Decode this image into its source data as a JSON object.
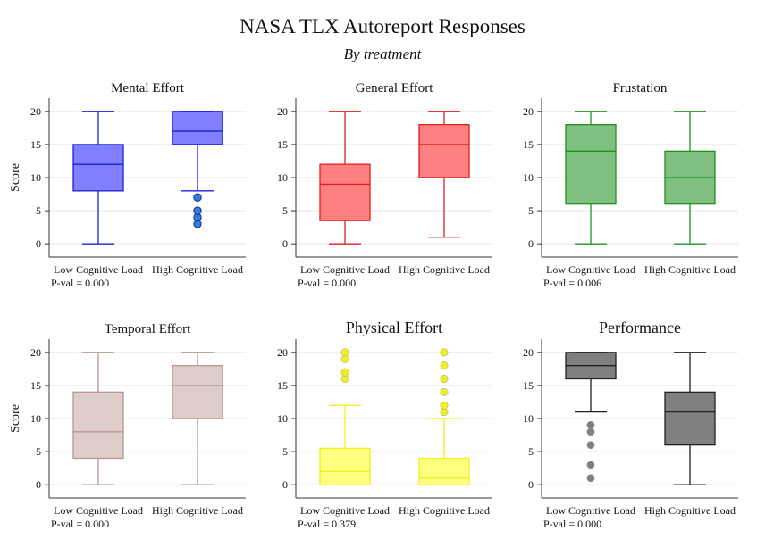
{
  "figure": {
    "title": "NASA TLX Autoreport Responses",
    "subtitle": "By treatment"
  },
  "chart_data": [
    {
      "type": "box",
      "title": "Mental Effort",
      "ylabel": "Score",
      "ylim": [
        -2,
        22
      ],
      "yticks": [
        0,
        5,
        10,
        15,
        20
      ],
      "categories": [
        "Low Cognitive Load",
        "High Cognitive Load"
      ],
      "color": "#8080ff",
      "stroke": "#1f1fd8",
      "boxes": [
        {
          "whisker_low": 0,
          "q1": 8,
          "median": 12,
          "q3": 15,
          "whisker_high": 20,
          "outliers": []
        },
        {
          "whisker_low": 8,
          "q1": 15,
          "median": 17,
          "q3": 20,
          "whisker_high": 20,
          "outliers": [
            3,
            4,
            5,
            7
          ]
        }
      ],
      "pval": "P-val = 0.000"
    },
    {
      "type": "box",
      "title": "General Effort",
      "ylabel": "",
      "ylim": [
        -2,
        22
      ],
      "yticks": [
        0,
        5,
        10,
        15,
        20
      ],
      "categories": [
        "Low Cognitive Load",
        "High Cognitive Load"
      ],
      "color": "#ff8080",
      "stroke": "#e02020",
      "boxes": [
        {
          "whisker_low": 0,
          "q1": 3.5,
          "median": 9,
          "q3": 12,
          "whisker_high": 20,
          "outliers": []
        },
        {
          "whisker_low": 1,
          "q1": 10,
          "median": 15,
          "q3": 18,
          "whisker_high": 20,
          "outliers": []
        }
      ],
      "pval": "P-val = 0.000"
    },
    {
      "type": "box",
      "title": "Frustation",
      "ylabel": "",
      "ylim": [
        -2,
        22
      ],
      "yticks": [
        0,
        5,
        10,
        15,
        20
      ],
      "categories": [
        "Low Cognitive Load",
        "High Cognitive Load"
      ],
      "color": "#80c080",
      "stroke": "#209020",
      "boxes": [
        {
          "whisker_low": 0,
          "q1": 6,
          "median": 14,
          "q3": 18,
          "whisker_high": 20,
          "outliers": []
        },
        {
          "whisker_low": 0,
          "q1": 6,
          "median": 10,
          "q3": 14,
          "whisker_high": 20,
          "outliers": []
        }
      ],
      "pval": "P-val = 0.006"
    },
    {
      "type": "box",
      "title": "Temporal Effort",
      "ylabel": "Score",
      "ylim": [
        -2,
        22
      ],
      "yticks": [
        0,
        5,
        10,
        15,
        20
      ],
      "categories": [
        "Low Cognitive Load",
        "High Cognitive Load"
      ],
      "color": "#dfcdca",
      "stroke": "#b8968f",
      "boxes": [
        {
          "whisker_low": 0,
          "q1": 4,
          "median": 8,
          "q3": 14,
          "whisker_high": 20,
          "outliers": []
        },
        {
          "whisker_low": 0,
          "q1": 10,
          "median": 15,
          "q3": 18,
          "whisker_high": 20,
          "outliers": []
        }
      ],
      "pval": "P-val = 0.000"
    },
    {
      "type": "box",
      "title": "Physical Effort",
      "ylabel": "",
      "ylim": [
        -2,
        22
      ],
      "yticks": [
        0,
        5,
        10,
        15,
        20
      ],
      "categories": [
        "Low Cognitive Load",
        "High Cognitive Load"
      ],
      "color": "#ffff80",
      "stroke": "#f0f020",
      "boxes": [
        {
          "whisker_low": 0,
          "q1": 0,
          "median": 2,
          "q3": 5.5,
          "whisker_high": 12,
          "outliers": [
            16,
            17,
            19,
            20
          ]
        },
        {
          "whisker_low": 0,
          "q1": 0,
          "median": 1,
          "q3": 4,
          "whisker_high": 10,
          "outliers": [
            11,
            12,
            14,
            16,
            18,
            20
          ]
        }
      ],
      "pval": "P-val = 0.379"
    },
    {
      "type": "box",
      "title": "Performance",
      "ylabel": "",
      "ylim": [
        -2,
        22
      ],
      "yticks": [
        0,
        5,
        10,
        15,
        20
      ],
      "categories": [
        "Low Cognitive Load",
        "High Cognitive Load"
      ],
      "color": "#808080",
      "stroke": "#202020",
      "boxes": [
        {
          "whisker_low": 11,
          "q1": 16,
          "median": 18,
          "q3": 20,
          "whisker_high": 20,
          "outliers": [
            1,
            3,
            6,
            8,
            9
          ]
        },
        {
          "whisker_low": 0,
          "q1": 6,
          "median": 11,
          "q3": 14,
          "whisker_high": 20,
          "outliers": []
        }
      ],
      "pval": "P-val = 0.000"
    }
  ]
}
